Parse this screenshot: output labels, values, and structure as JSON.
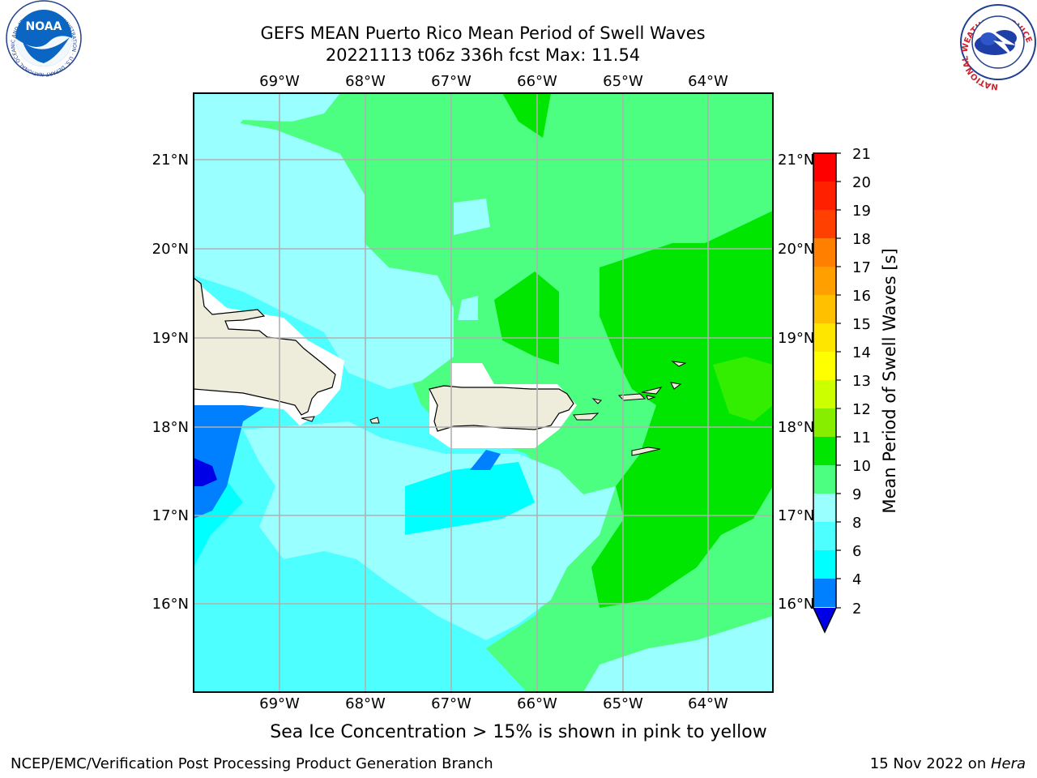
{
  "title": {
    "line1": "GEFS MEAN Puerto Rico Mean Period of Swell Waves",
    "line2": "20221113 t06z 336h fcst   Max: 11.54"
  },
  "map": {
    "lon_labels": [
      "69°W",
      "68°W",
      "67°W",
      "66°W",
      "65°W",
      "64°W"
    ],
    "lat_labels": [
      "21°N",
      "20°N",
      "19°N",
      "18°N",
      "17°N",
      "16°N"
    ],
    "extent": {
      "lon_min": -70.0,
      "lon_max": -63.25,
      "lat_min": 15.0,
      "lat_max": 21.75
    }
  },
  "colorbar": {
    "label": "Mean Period of Swell Waves [s]",
    "ticks": [
      "21",
      "20",
      "19",
      "18",
      "17",
      "16",
      "15",
      "14",
      "13",
      "12",
      "11",
      "10",
      "9",
      "8",
      "6",
      "4",
      "2"
    ],
    "colors": {
      "lt2": "#0000e6",
      "2_4": "#0080ff",
      "4_6": "#00ffff",
      "6_8": "#4dffff",
      "8_9": "#99ffff",
      "9_10": "#4dff80",
      "10_11": "#00e600",
      "11_12": "#33ee00",
      "12_13": "#88ee00",
      "13_14": "#ccff00",
      "14_15": "#ffff00",
      "15_16": "#ffe600",
      "16_17": "#ffc000",
      "17_18": "#ffa000",
      "18_19": "#ff7f00",
      "19_20": "#ff4000",
      "20_21": "#ff2000",
      "gt21": "#ff0000"
    }
  },
  "land_color": "#eeeddb",
  "subtitle": "Sea Ice Concentration > 15% is shown in pink to yellow",
  "footer": {
    "left": "NCEP/EMC/Verification Post Processing Product Generation Branch",
    "date": "15 Nov 2022 on ",
    "machine": "Hera"
  },
  "logos": {
    "noaa_text": "NOAA",
    "noaa_ring": "NATIONAL OCEANIC AND ATMOSPHERIC ADMINISTRATION · U.S. DEPARTMENT OF COMMERCE",
    "nws_ring": "NATIONAL WEATHER SERVICE"
  }
}
